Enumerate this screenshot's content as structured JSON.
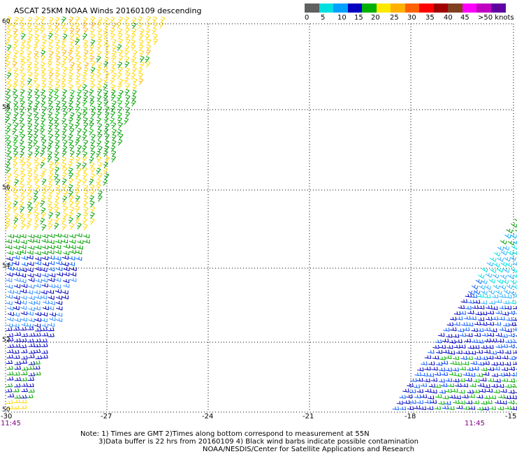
{
  "title": "ASCAT 25KM NOAA Winds 20160109 descending",
  "legend": {
    "colors": [
      "#606060",
      "#00e0e0",
      "#00a0ff",
      "#0000c0",
      "#00b000",
      "#ffe800",
      "#ffb000",
      "#ff6000",
      "#ff0000",
      "#a00000",
      "#804020",
      "#ff00ff",
      "#c000c0",
      "#6000a0"
    ],
    "labels": [
      "0",
      "5",
      "10",
      "15",
      "20",
      "25",
      "30",
      "35",
      "40",
      "45",
      ">50 knots"
    ]
  },
  "axes": {
    "lat_labels": [
      "60",
      "58",
      "56",
      "54",
      "52",
      "50"
    ],
    "lon_labels": [
      "-30",
      "-27",
      "-24",
      "-21",
      "-18",
      "-15"
    ]
  },
  "times": [
    "11:45",
    "11:45"
  ],
  "notes": {
    "line1": "Note: 1) Times are GMT 2)Times along bottom correspond to measurement at 55N",
    "line2": "3)Data buffer is 22 hrs from 20160109 4) Black wind barbs indicate possible contamination",
    "line3": "NOAA/NESDIS/Center for Satellite Applications and Research"
  }
}
